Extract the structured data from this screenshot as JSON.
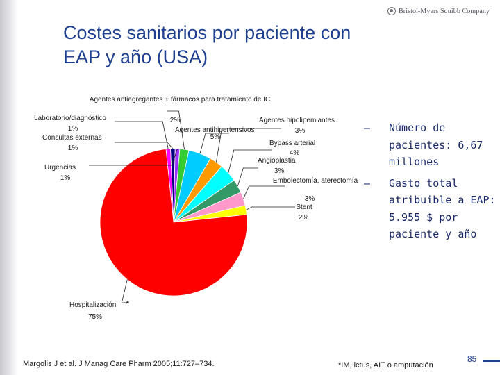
{
  "slide": {
    "logo_text": "Bristol-Myers Squibb Company",
    "title_line1": "Costes sanitarios por paciente con",
    "title_line2": "EAP y año (USA)",
    "bullets": [
      {
        "dash": "–",
        "text": "Número de pacientes: 6,67 millones"
      },
      {
        "dash": "–",
        "text": "Gasto total atribuible a EAP: 5.955 $ por paciente y año"
      }
    ],
    "source": "Margolis J et al. J Manag Care Pharm 2005;11:727–734.",
    "footnote": "*IM, ictus, AIT o amputación",
    "page_number": "85",
    "colors": {
      "title": "#1f3f8f",
      "bullet_text": "#1a2a6a"
    }
  },
  "chart_data": {
    "type": "pie",
    "title": "",
    "unit": "%",
    "slices": [
      {
        "label": "Laboratorio/diagnóstico",
        "value": 1,
        "value_label": "1%",
        "color": "#ff00ff"
      },
      {
        "label": "Consultas externas",
        "value": 1,
        "value_label": "1%",
        "color": "#000080"
      },
      {
        "label": "Urgencias",
        "value": 1,
        "value_label": "1%",
        "color": "#9b30ff"
      },
      {
        "label": "Agentes antiagregantes + fármacos para tratamiento de IC",
        "value": 2,
        "value_label": "2%",
        "color": "#33cc33"
      },
      {
        "label": "Agentes antihipertensivos",
        "value": 5,
        "value_label": "5%",
        "color": "#00ccff"
      },
      {
        "label": "Agentes hipolipemiantes",
        "value": 3,
        "value_label": "3%",
        "color": "#ff9900"
      },
      {
        "label": "Bypass arterial",
        "value": 4,
        "value_label": "4%",
        "color": "#00ffff"
      },
      {
        "label": "Angioplastia",
        "value": 3,
        "value_label": "3%",
        "color": "#339966"
      },
      {
        "label": "Embolectomía, aterectomía",
        "value": 3,
        "value_label": "3%",
        "color": "#ff99cc"
      },
      {
        "label": "Stent",
        "value": 2,
        "value_label": "2%",
        "color": "#ffff00"
      },
      {
        "label": "Hospitalización",
        "label_mark": "*",
        "value": 75,
        "value_label": "75%",
        "color": "#ff0000"
      }
    ]
  }
}
